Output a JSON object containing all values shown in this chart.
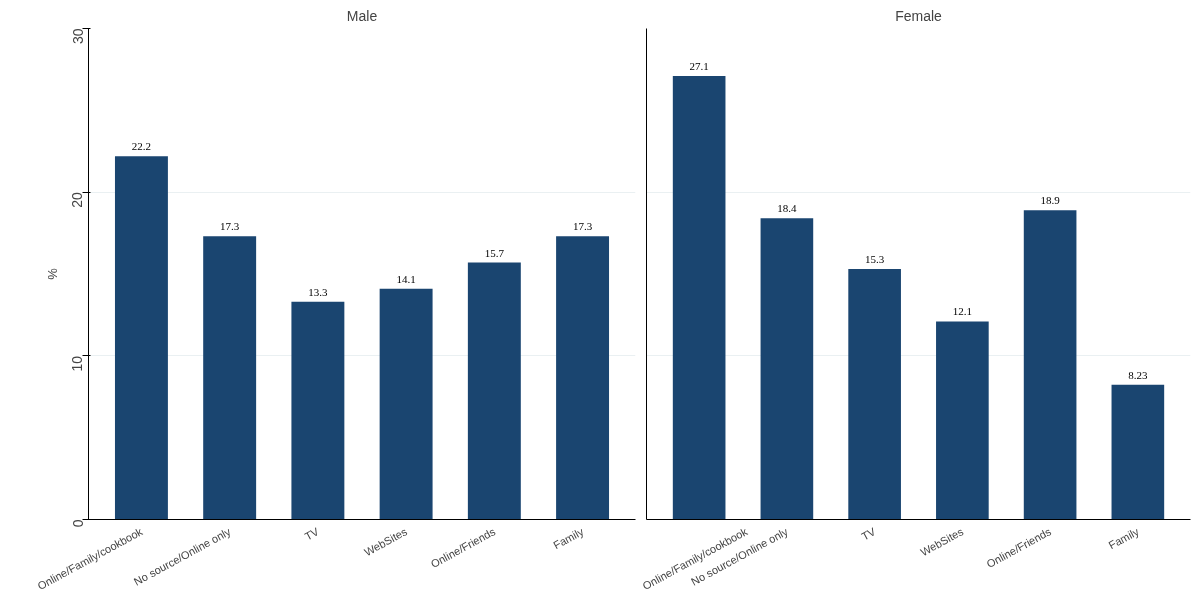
{
  "chart_data": [
    {
      "type": "bar",
      "title": "Male",
      "ylabel": "%",
      "categories": [
        "Online/Family/cookbook",
        "No source/Online only",
        "TV",
        "WebSites",
        "Online/Friends",
        "Family"
      ],
      "values": [
        22.2,
        17.3,
        13.3,
        14.1,
        15.7,
        17.3
      ],
      "color": "#1a4570",
      "ylim": [
        0,
        30
      ],
      "yticks": [
        0,
        10,
        20,
        30
      ],
      "grid": "y",
      "data_labels": true
    },
    {
      "type": "bar",
      "title": "Female",
      "categories": [
        "Online/Family/cookbook",
        "No source/Online only",
        "TV",
        "WebSites",
        "Online/Friends",
        "Family"
      ],
      "values": [
        27.1,
        18.4,
        15.3,
        12.1,
        18.9,
        8.23
      ],
      "color": "#1a4570",
      "ylim": [
        0,
        30
      ],
      "yticks": [
        0,
        10,
        20,
        30
      ],
      "grid": "y",
      "data_labels": true,
      "tick_labels": "x"
    }
  ]
}
